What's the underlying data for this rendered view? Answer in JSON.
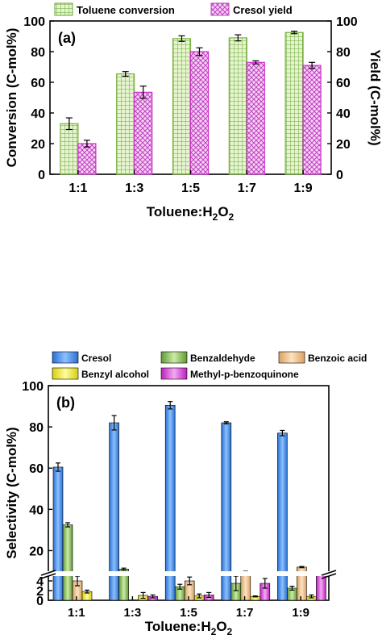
{
  "chart_data": [
    {
      "type": "bar",
      "panel_label": "(a)",
      "categories": [
        "1:1",
        "1:3",
        "1:5",
        "1:7",
        "1:9"
      ],
      "xlabel": {
        "main": "Toluene:H",
        "sub1": "2",
        "mid": "O",
        "sub2": "2"
      },
      "ylabel": "Conversion (C-mol%)",
      "y2label": "Yield (C-mol%)",
      "ylim": [
        0,
        100
      ],
      "yticks": [
        0,
        20,
        40,
        60,
        80,
        100
      ],
      "y2ticks": [
        0,
        20,
        40,
        60,
        80,
        100
      ],
      "grid": false,
      "legend_position": "top",
      "series": [
        {
          "name": "Toluene conversion",
          "axis": "left",
          "pattern": "grid",
          "color": "#7cb342",
          "fill": "#e6f5cf",
          "values": [
            33,
            65.5,
            88.5,
            89,
            92.5
          ],
          "errors": [
            3.8,
            1.5,
            1.8,
            2,
            0.8
          ]
        },
        {
          "name": "Cresol yield",
          "axis": "right",
          "pattern": "crosshatch",
          "color": "#cc33cc",
          "fill": "#f3c9f3",
          "values": [
            20,
            53.5,
            80,
            73,
            71
          ],
          "errors": [
            2.2,
            4,
            2.5,
            1,
            2
          ]
        }
      ]
    },
    {
      "type": "bar",
      "panel_label": "(b)",
      "categories": [
        "1:1",
        "1:3",
        "1:5",
        "1:7",
        "1:9"
      ],
      "xlabel": {
        "main": "Toluene:H",
        "sub1": "2",
        "mid": "O",
        "sub2": "2"
      },
      "ylabel": "Selectivity (C-mol%)",
      "broken_axis": {
        "lower_range": [
          0,
          5
        ],
        "upper_range": [
          10,
          100
        ]
      },
      "yticks_lower": [
        0,
        2,
        4
      ],
      "yticks_upper": [
        20,
        40,
        60,
        80,
        100
      ],
      "grid": false,
      "legend_position": "top",
      "series": [
        {
          "name": "Cresol",
          "color": "#4a8fe7",
          "values": [
            60.5,
            82,
            90.5,
            82,
            77
          ],
          "errors": [
            2,
            3.5,
            1.8,
            0.5,
            1.3
          ]
        },
        {
          "name": "Benzaldehyde",
          "color": "#8cc45a",
          "values": [
            32.5,
            11,
            2.8,
            3.5,
            2.5
          ],
          "errors": [
            1,
            0.5,
            0.5,
            1.5,
            0.4
          ]
        },
        {
          "name": "Benzoic acid",
          "color": "#f2c790",
          "values": [
            4,
            0,
            4,
            9,
            12
          ],
          "errors": [
            1,
            0,
            0.8,
            1,
            0.3
          ]
        },
        {
          "name": "Benzyl alcohol",
          "color": "#f5f03c",
          "values": [
            1.8,
            1,
            0.9,
            0.8,
            0.8
          ],
          "errors": [
            0.3,
            0.6,
            0.4,
            0.1,
            0.3
          ]
        },
        {
          "name": "Methyl-p-benzoquinone",
          "color": "#e048e0",
          "values": [
            0,
            0.8,
            1.1,
            3.5,
            7.5
          ],
          "errors": [
            0,
            0.3,
            0.5,
            1,
            0.3
          ]
        }
      ]
    }
  ]
}
